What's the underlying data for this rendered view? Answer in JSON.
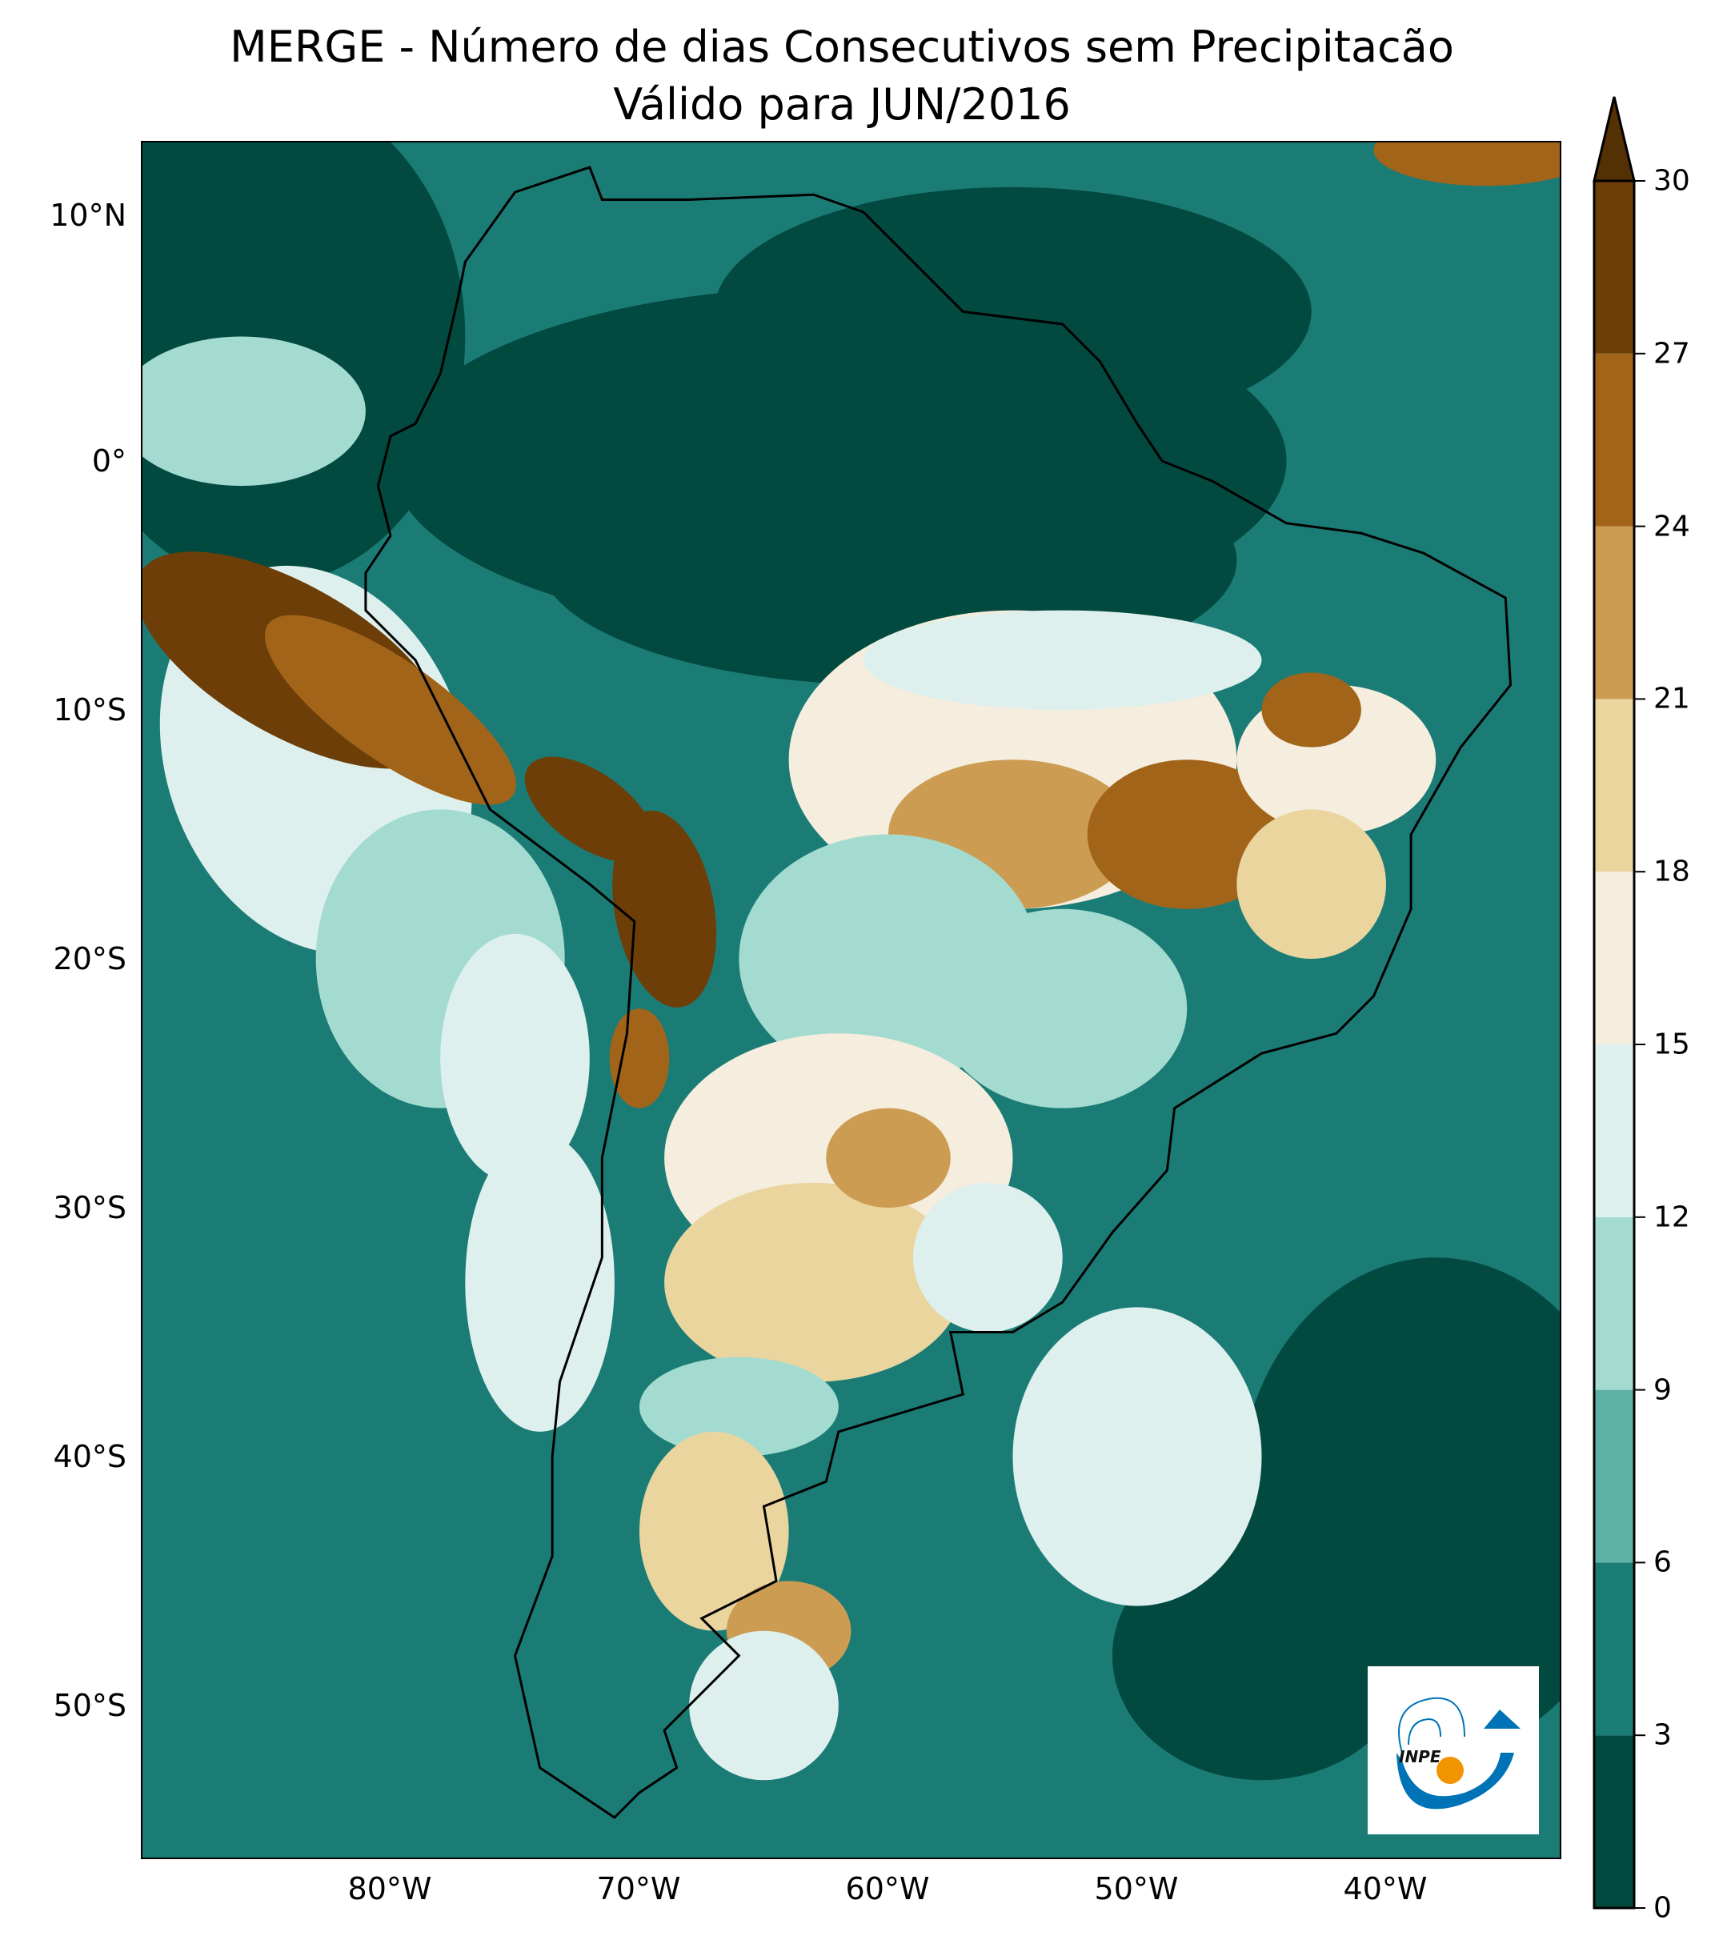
{
  "title": "MERGE - Número de dias Consecutivos sem Precipitacão",
  "subtitle": "Válido para JUN/2016",
  "map": {
    "lat_ticks": [
      "10°N",
      "0°",
      "10°S",
      "20°S",
      "30°S",
      "40°S",
      "50°S"
    ],
    "lon_ticks": [
      "80°W",
      "70°W",
      "60°W",
      "50°W",
      "40°W"
    ],
    "extent": {
      "lon": [
        -90,
        -33
      ],
      "lat": [
        -56,
        12.8
      ]
    },
    "region": "South America"
  },
  "colorbar": {
    "ticks": [
      "0",
      "3",
      "6",
      "9",
      "12",
      "15",
      "18",
      "21",
      "24",
      "27",
      "30"
    ],
    "extend": "max",
    "colors": [
      "#024a40",
      "#1b7c76",
      "#5db1a5",
      "#a4dbd1",
      "#def0ed",
      "#f5eddd",
      "#ead59f",
      "#cd9c53",
      "#a26419",
      "#6d3e07"
    ],
    "over_color": "#543005"
  },
  "logo": {
    "text": "INPE",
    "colors": {
      "blue": "#0073b7",
      "orange": "#f29400"
    }
  }
}
